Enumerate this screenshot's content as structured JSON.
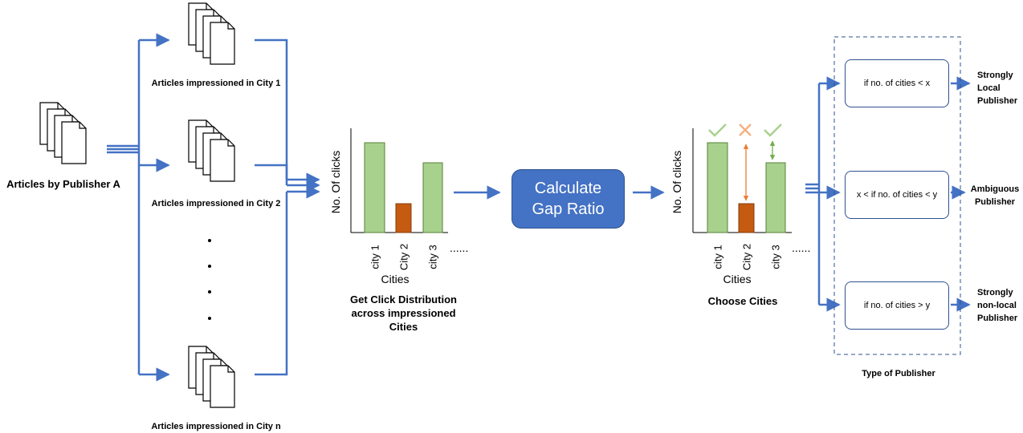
{
  "colors": {
    "flow_blue": "#4472c4",
    "bar_green": "#a9d18e",
    "bar_green_border": "#548235",
    "bar_orange": "#c55a11",
    "check_green": "#a9d18e",
    "cross_orange": "#f4b183"
  },
  "source": {
    "label": "Articles by Publisher A"
  },
  "impressions": [
    {
      "label": "Articles impressioned in City 1"
    },
    {
      "label": "Articles impressioned in City 2"
    },
    {
      "label": "Articles impressioned in City n"
    }
  ],
  "click_chart": {
    "ylabel": "No. Of clicks",
    "xlabel": "Cities",
    "categories": [
      "city 1",
      "City 2",
      "city 3"
    ],
    "ellipsis": "......",
    "caption": "Get Click Distribution across impressioned Cities"
  },
  "process": {
    "label": "Calculate Gap Ratio"
  },
  "choose_chart": {
    "ylabel": "No. Of clicks",
    "xlabel": "Cities",
    "categories": [
      "city 1",
      "City 2",
      "city 3"
    ],
    "ellipsis": "......",
    "caption": "Choose Cities",
    "marks": [
      "check-icon",
      "cross-icon",
      "check-icon"
    ]
  },
  "conditions": [
    {
      "text": "if no. of cities < x",
      "result": "Strongly Local Publisher"
    },
    {
      "text": "x < if no. of cities  < y",
      "result": "Ambiguous Publisher"
    },
    {
      "text": "if no. of cities > y",
      "result": "Strongly non-local Publisher"
    }
  ],
  "group_caption": "Type of Publisher"
}
